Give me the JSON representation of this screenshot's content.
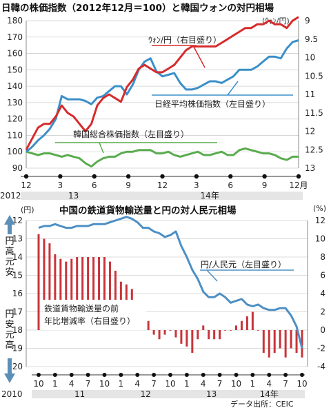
{
  "chart_data": [
    {
      "type": "line",
      "title": "日韓の株価指数（2012年12月＝100）と韓国ウォンの対円相場",
      "x": {
        "tick_labels": [
          "12",
          "3",
          "6",
          "9",
          "12",
          "3",
          "6",
          "9",
          "12月"
        ],
        "year_labels": [
          "2012",
          "13",
          "14年"
        ]
      },
      "left_axis": {
        "ylim": [
          90,
          180
        ],
        "ticks": [
          "90",
          "100",
          "110",
          "120",
          "130",
          "140",
          "150",
          "160",
          "170",
          "180"
        ]
      },
      "right_axis": {
        "ylim": [
          13,
          9
        ],
        "unit": "(ｳｫﾝ/円)",
        "ticks": [
          "9",
          "9.5",
          "10",
          "10.5",
          "11",
          "11.5",
          "12",
          "12.5",
          "13"
        ]
      },
      "series": [
        {
          "name": "日経平均株価指数（左目盛り）",
          "axis": "left",
          "color": "#3a8fc8",
          "x": [
            0,
            0.5,
            1,
            1.5,
            2,
            2.5,
            3,
            3.5,
            4,
            4.5,
            5,
            5.5,
            6,
            6.5,
            7,
            7.5,
            8,
            8.5,
            9,
            9.5,
            10,
            10.5,
            11,
            11.5,
            12,
            12.5,
            13,
            13.5,
            14,
            14.5,
            15,
            15.5,
            16,
            16.5,
            17,
            17.5,
            18,
            18.5,
            19,
            19.5,
            20,
            20.5,
            21,
            21.5,
            22,
            22.5,
            23
          ],
          "y": [
            100,
            103,
            107,
            110,
            114,
            120,
            134,
            132,
            132,
            132,
            131,
            129,
            133,
            134,
            137,
            140,
            140,
            135,
            141,
            150,
            155,
            157,
            149,
            146,
            147,
            148,
            142,
            138,
            138,
            139,
            141,
            143,
            143,
            142,
            144,
            146,
            150,
            150,
            150,
            152,
            155,
            158,
            158,
            157,
            163,
            167,
            168
          ]
        },
        {
          "name": "ｳｫﾝ/円（右目盛り）",
          "axis": "right",
          "color": "#d62b2b",
          "x": [
            0,
            0.5,
            1,
            1.5,
            2,
            2.5,
            3,
            3.5,
            4,
            4.5,
            5,
            5.5,
            6,
            6.5,
            7,
            7.5,
            8,
            8.5,
            9,
            9.5,
            10,
            10.5,
            11,
            11.5,
            12,
            12.5,
            13,
            13.5,
            14,
            14.5,
            15,
            15.5,
            16,
            16.5,
            17,
            17.5,
            18,
            18.5,
            19,
            19.5,
            20,
            20.5,
            21,
            21.5,
            22,
            22.5,
            23
          ],
          "y": [
            12.5,
            12.2,
            11.9,
            11.8,
            11.8,
            11.6,
            11.3,
            11.5,
            11.6,
            11.8,
            12.0,
            11.8,
            11.3,
            11.1,
            11.0,
            11.1,
            11.2,
            10.8,
            10.6,
            10.3,
            10.2,
            10.3,
            10.4,
            10.4,
            10.3,
            10.2,
            10.0,
            9.8,
            9.7,
            9.7,
            9.7,
            9.7,
            9.7,
            9.6,
            9.5,
            9.4,
            9.3,
            9.2,
            9.2,
            9.1,
            9.1,
            9.0,
            9.1,
            9.1,
            9.2,
            9.0,
            8.9
          ]
        },
        {
          "name": "韓国総合株価指数（左目盛り）",
          "axis": "left",
          "color": "#5aac4f",
          "x": [
            0,
            0.5,
            1,
            1.5,
            2,
            2.5,
            3,
            3.5,
            4,
            4.5,
            5,
            5.5,
            6,
            6.5,
            7,
            7.5,
            8,
            8.5,
            9,
            9.5,
            10,
            10.5,
            11,
            11.5,
            12,
            12.5,
            13,
            13.5,
            14,
            14.5,
            15,
            15.5,
            16,
            16.5,
            17,
            17.5,
            18,
            18.5,
            19,
            19.5,
            20,
            20.5,
            21,
            21.5,
            22,
            22.5,
            23
          ],
          "y": [
            100,
            99,
            98,
            99,
            99,
            98,
            97,
            98,
            97,
            96,
            93,
            91,
            94,
            96,
            97,
            97,
            99,
            100,
            100,
            101,
            101,
            101,
            99,
            99,
            100,
            98,
            97,
            98,
            99,
            100,
            98,
            98,
            99,
            100,
            98,
            98,
            101,
            102,
            101,
            100,
            99,
            99,
            98,
            96,
            95,
            97,
            97
          ]
        }
      ]
    },
    {
      "type": "bar+line",
      "title": "中国の鉄道貨物輸送量と円の対人民元相場",
      "x": {
        "tick_labels": [
          "10",
          "1",
          "4",
          "7",
          "10",
          "1",
          "4",
          "7",
          "10",
          "1",
          "4",
          "7",
          "10",
          "1",
          "4",
          "7",
          "10"
        ],
        "year_labels": [
          "2010",
          "11",
          "12",
          "13",
          "14年"
        ]
      },
      "left_axis": {
        "unit": "(円)",
        "ylim": [
          20,
          12
        ],
        "ticks": [
          "12",
          "13",
          "14",
          "15",
          "16",
          "17",
          "18",
          "19",
          "20"
        ],
        "side_labels": [
          "円高元安",
          "円安元高"
        ]
      },
      "right_axis": {
        "unit": "(%)",
        "ylim": [
          -4,
          12
        ],
        "ticks": [
          "12",
          "10",
          "8",
          "6",
          "4",
          "2",
          "0",
          "-2",
          "-4"
        ]
      },
      "series": [
        {
          "name": "鉄道貨物輸送量の前年比増減率（右目盛り）",
          "axis": "right",
          "type": "bar",
          "color": "#c8343a",
          "x": [
            0,
            1,
            2,
            3,
            4,
            5,
            6,
            7,
            8,
            9,
            10,
            11,
            12,
            13,
            14,
            15,
            16,
            17,
            18,
            19,
            20,
            21,
            22,
            23,
            24,
            25,
            26,
            27,
            28,
            29,
            30,
            31,
            32,
            33,
            34,
            35,
            36,
            37,
            38,
            39,
            40,
            41,
            42,
            43,
            44,
            45,
            46,
            47,
            48
          ],
          "values": [
            10.5,
            10,
            9.5,
            8.3,
            7.8,
            7.5,
            7.8,
            8,
            8,
            8,
            8,
            8,
            8,
            7.5,
            6.5,
            5.3,
            5,
            4.5,
            3,
            3,
            1,
            -0.5,
            -1,
            -0.5,
            0,
            -0.8,
            -1.5,
            -1.8,
            -2.5,
            -1,
            0.5,
            -1,
            -1,
            -1,
            0,
            0,
            0.5,
            1,
            1.5,
            2,
            0,
            -2.5,
            -3,
            -2.5,
            -2,
            -3,
            -2,
            -2.5,
            -3
          ]
        },
        {
          "name": "円/人民元（左目盛り）",
          "axis": "left",
          "type": "line",
          "color": "#4d8fc4",
          "x": [
            0,
            1,
            2,
            3,
            4,
            5,
            6,
            7,
            8,
            9,
            10,
            11,
            12,
            13,
            14,
            15,
            16,
            17,
            18,
            19,
            20,
            21,
            22,
            23,
            24,
            25,
            26,
            27,
            28,
            29,
            30,
            31,
            32,
            33,
            34,
            35,
            36,
            37,
            38,
            39,
            40,
            41,
            42,
            43,
            44,
            45,
            46,
            47,
            48
          ],
          "values": [
            12.4,
            12.3,
            12.3,
            12.2,
            12.3,
            12.4,
            12.4,
            12.3,
            12.3,
            12.3,
            12.2,
            12.2,
            12.2,
            12.1,
            12.0,
            11.9,
            11.8,
            11.9,
            12.1,
            12.4,
            12.4,
            12.6,
            12.7,
            12.9,
            12.8,
            12.6,
            13.4,
            14.0,
            14.7,
            15.2,
            15.9,
            16.2,
            16.2,
            16.0,
            16.2,
            16.5,
            16.4,
            16.3,
            16.6,
            16.7,
            16.6,
            16.8,
            16.9,
            16.9,
            16.8,
            16.8,
            17.2,
            17.8,
            19.0
          ]
        }
      ],
      "annotations": {
        "source": "データ出所：CEIC"
      }
    }
  ]
}
